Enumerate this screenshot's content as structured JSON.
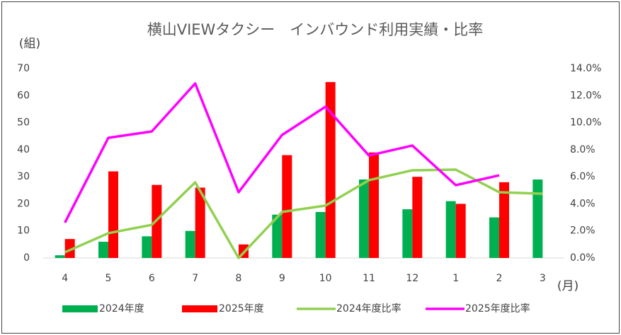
{
  "chart_data": {
    "type": "bar-line",
    "title": "横山VIEWタクシー　インバウンド利用実績・比率",
    "y_label": "(組)",
    "x_label": "(月)",
    "categories": [
      "4",
      "5",
      "6",
      "7",
      "8",
      "9",
      "10",
      "11",
      "12",
      "1",
      "2",
      "3"
    ],
    "series": [
      {
        "name": "2024年度",
        "type": "bar",
        "color": "#00b050",
        "values": [
          1,
          6,
          8,
          10,
          0,
          16,
          17,
          29,
          18,
          21,
          15,
          29
        ]
      },
      {
        "name": "2025年度",
        "type": "bar",
        "color": "#ff0000",
        "values": [
          7,
          32,
          27,
          26,
          5,
          38,
          65,
          39,
          30,
          20,
          28,
          null
        ]
      },
      {
        "name": "2024年度比率",
        "type": "line",
        "axis": "y2",
        "color": "#92d050",
        "values": [
          0.42,
          1.83,
          2.45,
          5.59,
          0,
          3.4,
          3.87,
          5.75,
          6.48,
          6.53,
          4.86,
          4.75
        ]
      },
      {
        "name": "2025年度比率",
        "type": "line",
        "axis": "y2",
        "color": "#ff00ff",
        "values": [
          2.61,
          8.88,
          9.35,
          12.9,
          4.86,
          9.09,
          11.18,
          7.57,
          8.31,
          5.38,
          6.11,
          null
        ]
      }
    ],
    "ylim": [
      0,
      70
    ],
    "yticks": [
      0,
      10,
      20,
      30,
      40,
      50,
      60,
      70
    ],
    "y2lim": [
      0,
      14
    ],
    "y2ticks": [
      {
        "value": 0,
        "label": "0.0%"
      },
      {
        "value": 2,
        "label": "2.0%"
      },
      {
        "value": 4,
        "label": "4.0%"
      },
      {
        "value": 6,
        "label": "6.0%"
      },
      {
        "value": 8,
        "label": "8.0%"
      },
      {
        "value": 10,
        "label": "10.0%"
      },
      {
        "value": 12,
        "label": "12.0%"
      },
      {
        "value": 14,
        "label": "14.0%"
      }
    ],
    "grid": false,
    "legend": "bottom"
  }
}
